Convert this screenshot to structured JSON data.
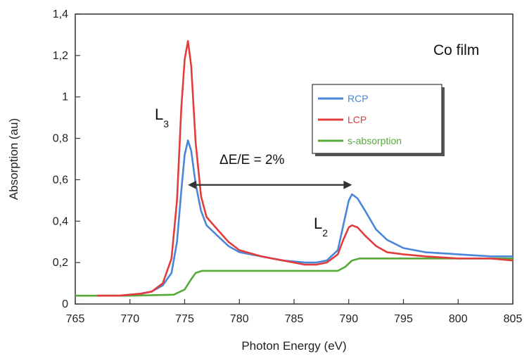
{
  "chart_data": {
    "type": "line",
    "title": "",
    "xlabel": "Photon Energy (eV)",
    "ylabel": "Absorption (au)",
    "xlim": [
      765,
      805
    ],
    "ylim": [
      0,
      1.4
    ],
    "xticks": [
      "765",
      "770",
      "775",
      "780",
      "785",
      "790",
      "795",
      "800",
      "805"
    ],
    "yticks": [
      "0",
      "0,2",
      "0,4",
      "0,6",
      "0,8",
      "1",
      "1,2",
      "1,4"
    ],
    "grid": false,
    "legend_position": "upper-right",
    "annotations": {
      "sample_label": "Co film",
      "l3_main": "L",
      "l3_sub": "3",
      "l2_main": "L",
      "l2_sub": "2",
      "resolution": "ΔE/E = 2%"
    },
    "series": [
      {
        "name": "RCP",
        "color": "#4a86d8",
        "points": [
          [
            767,
            0.04
          ],
          [
            769,
            0.04
          ],
          [
            771,
            0.05
          ],
          [
            772,
            0.06
          ],
          [
            773,
            0.09
          ],
          [
            773.8,
            0.15
          ],
          [
            774.3,
            0.3
          ],
          [
            774.7,
            0.55
          ],
          [
            775,
            0.72
          ],
          [
            775.3,
            0.79
          ],
          [
            775.6,
            0.74
          ],
          [
            776,
            0.58
          ],
          [
            776.5,
            0.45
          ],
          [
            777,
            0.38
          ],
          [
            778,
            0.33
          ],
          [
            779,
            0.28
          ],
          [
            780,
            0.25
          ],
          [
            782,
            0.23
          ],
          [
            784,
            0.21
          ],
          [
            786,
            0.2
          ],
          [
            787,
            0.2
          ],
          [
            788,
            0.21
          ],
          [
            789,
            0.26
          ],
          [
            789.5,
            0.38
          ],
          [
            790,
            0.5
          ],
          [
            790.3,
            0.53
          ],
          [
            790.8,
            0.51
          ],
          [
            791.5,
            0.45
          ],
          [
            792.5,
            0.36
          ],
          [
            793.5,
            0.31
          ],
          [
            795,
            0.27
          ],
          [
            797,
            0.25
          ],
          [
            800,
            0.24
          ],
          [
            803,
            0.23
          ],
          [
            805,
            0.23
          ]
        ]
      },
      {
        "name": "LCP",
        "color": "#e23c3c",
        "points": [
          [
            767,
            0.04
          ],
          [
            769,
            0.04
          ],
          [
            771,
            0.05
          ],
          [
            772,
            0.06
          ],
          [
            773,
            0.1
          ],
          [
            773.8,
            0.22
          ],
          [
            774.3,
            0.5
          ],
          [
            774.7,
            0.95
          ],
          [
            775,
            1.18
          ],
          [
            775.3,
            1.27
          ],
          [
            775.6,
            1.15
          ],
          [
            776,
            0.78
          ],
          [
            776.5,
            0.52
          ],
          [
            777,
            0.42
          ],
          [
            778,
            0.36
          ],
          [
            779,
            0.3
          ],
          [
            780,
            0.26
          ],
          [
            782,
            0.23
          ],
          [
            784,
            0.21
          ],
          [
            786,
            0.19
          ],
          [
            787,
            0.19
          ],
          [
            788,
            0.2
          ],
          [
            789,
            0.24
          ],
          [
            789.5,
            0.31
          ],
          [
            790,
            0.37
          ],
          [
            790.3,
            0.38
          ],
          [
            790.8,
            0.37
          ],
          [
            791.5,
            0.33
          ],
          [
            792.5,
            0.28
          ],
          [
            793.5,
            0.25
          ],
          [
            795,
            0.24
          ],
          [
            797,
            0.23
          ],
          [
            800,
            0.22
          ],
          [
            803,
            0.22
          ],
          [
            805,
            0.21
          ]
        ]
      },
      {
        "name": "s-absorption",
        "color": "#55aa3a",
        "points": [
          [
            765,
            0.04
          ],
          [
            770,
            0.04
          ],
          [
            774,
            0.045
          ],
          [
            775,
            0.07
          ],
          [
            775.6,
            0.12
          ],
          [
            776,
            0.15
          ],
          [
            776.6,
            0.16
          ],
          [
            780,
            0.16
          ],
          [
            785,
            0.16
          ],
          [
            789,
            0.16
          ],
          [
            789.7,
            0.18
          ],
          [
            790.3,
            0.21
          ],
          [
            791,
            0.22
          ],
          [
            795,
            0.22
          ],
          [
            800,
            0.22
          ],
          [
            805,
            0.22
          ]
        ]
      }
    ],
    "arrow": {
      "x_from": 775.3,
      "x_to": 790.3,
      "y": 0.575
    }
  }
}
